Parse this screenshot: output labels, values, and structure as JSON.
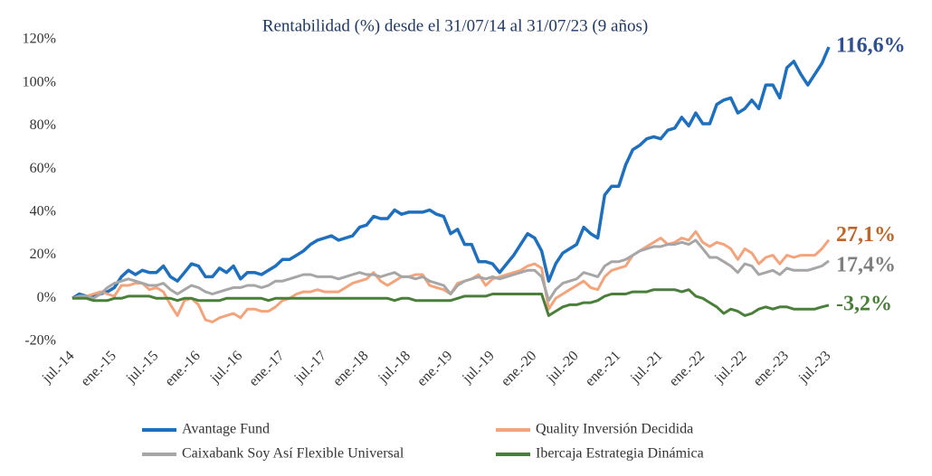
{
  "chart_data": {
    "type": "line",
    "title": "Rentabilidad (%) desde el 31/07/14 al 31/07/23 (9 años)",
    "categories": [
      "jul.-14",
      null,
      null,
      null,
      null,
      null,
      "ene.-15",
      null,
      null,
      null,
      null,
      null,
      "jul.-15",
      null,
      null,
      null,
      null,
      null,
      "ene.-16",
      null,
      null,
      null,
      null,
      null,
      "jul.-16",
      null,
      null,
      null,
      null,
      null,
      "ene.-17",
      null,
      null,
      null,
      null,
      null,
      "jul.-17",
      null,
      null,
      null,
      null,
      null,
      "ene.-18",
      null,
      null,
      null,
      null,
      null,
      "jul.-18",
      null,
      null,
      null,
      null,
      null,
      "ene.-19",
      null,
      null,
      null,
      null,
      null,
      "jul.-19",
      null,
      null,
      null,
      null,
      null,
      "ene.-20",
      null,
      null,
      null,
      null,
      null,
      "jul.-20",
      null,
      null,
      null,
      null,
      null,
      "ene.-21",
      null,
      null,
      null,
      null,
      null,
      "jul.-21",
      null,
      null,
      null,
      null,
      null,
      "ene.-22",
      null,
      null,
      null,
      null,
      null,
      "jul.-22",
      null,
      null,
      null,
      null,
      null,
      "ene.-23",
      null,
      null,
      null,
      null,
      null,
      "jul.-23"
    ],
    "ylim": [
      -20,
      120
    ],
    "yticks": [
      {
        "value": -20,
        "label": "-20%"
      },
      {
        "value": 0,
        "label": "0%"
      },
      {
        "value": 20,
        "label": "20%"
      },
      {
        "value": 40,
        "label": "40%"
      },
      {
        "value": 60,
        "label": "60%"
      },
      {
        "value": 80,
        "label": "80%"
      },
      {
        "value": 100,
        "label": "100%"
      },
      {
        "value": 120,
        "label": "120%"
      }
    ],
    "series": [
      {
        "name": "Avantage Fund",
        "color": "#1f6fbf",
        "label_color": "#2f4f8f",
        "end_label": "116,6%",
        "values": [
          0,
          2,
          1,
          1,
          2,
          3,
          5,
          10,
          13,
          11,
          13,
          12,
          12,
          15,
          10,
          8,
          12,
          16,
          15,
          10,
          10,
          14,
          12,
          15,
          9,
          12,
          12,
          11,
          13,
          15,
          18,
          18,
          20,
          22,
          25,
          27,
          28,
          29,
          27,
          28,
          29,
          33,
          34,
          38,
          37,
          37,
          41,
          39,
          40,
          40,
          40,
          41,
          39,
          38,
          30,
          32,
          25,
          25,
          17,
          17,
          16,
          12,
          16,
          20,
          25,
          30,
          28,
          22,
          8,
          16,
          21,
          23,
          25,
          33,
          30,
          28,
          48,
          52,
          52,
          62,
          69,
          71,
          74,
          75,
          74,
          78,
          79,
          84,
          80,
          86,
          81,
          81,
          90,
          92,
          93,
          86,
          88,
          92,
          88,
          99,
          99,
          93,
          107,
          110,
          104,
          99,
          104,
          109,
          116.6
        ]
      },
      {
        "name": "Quality Inversión Decidida",
        "color": "#f4a47c",
        "label_color": "#c0652a",
        "end_label": "27,1%",
        "values": [
          0,
          1,
          1,
          2,
          3,
          2,
          1,
          6,
          6,
          7,
          7,
          4,
          5,
          3,
          -3,
          -8,
          -1,
          0,
          -3,
          -10,
          -11,
          -9,
          -8,
          -7,
          -9,
          -5,
          -5,
          -6,
          -6,
          -4,
          -1,
          0,
          2,
          3,
          3,
          4,
          3,
          3,
          3,
          5,
          7,
          8,
          9,
          12,
          8,
          6,
          8,
          10,
          10,
          11,
          11,
          6,
          5,
          4,
          2,
          7,
          8,
          9,
          11,
          6,
          9,
          10,
          11,
          12,
          13,
          15,
          16,
          14,
          -5,
          0,
          2,
          4,
          6,
          8,
          5,
          4,
          10,
          13,
          14,
          15,
          20,
          22,
          24,
          26,
          28,
          25,
          26,
          28,
          27,
          31,
          26,
          24,
          26,
          25,
          23,
          18,
          23,
          21,
          16,
          19,
          20,
          16,
          20,
          19,
          20,
          20,
          20,
          23,
          27.1
        ]
      },
      {
        "name": "Caixabank Soy Así Flexible Universal",
        "color": "#a6a6a6",
        "label_color": "#7f7f7f",
        "end_label": "17,4%",
        "values": [
          0,
          1,
          1,
          0,
          2,
          5,
          7,
          8,
          9,
          8,
          7,
          6,
          6,
          7,
          4,
          2,
          4,
          6,
          5,
          3,
          2,
          3,
          4,
          5,
          5,
          6,
          6,
          5,
          6,
          8,
          8,
          9,
          10,
          11,
          11,
          10,
          10,
          10,
          9,
          10,
          11,
          12,
          11,
          11,
          10,
          11,
          12,
          10,
          10,
          9,
          10,
          8,
          7,
          6,
          2,
          6,
          8,
          9,
          10,
          9,
          10,
          9,
          10,
          11,
          12,
          13,
          13,
          10,
          -1,
          4,
          7,
          8,
          9,
          12,
          11,
          10,
          15,
          17,
          17,
          18,
          20,
          22,
          23,
          24,
          24,
          25,
          25,
          26,
          25,
          27,
          23,
          19,
          19,
          17,
          15,
          12,
          16,
          15,
          11,
          12,
          13,
          11,
          14,
          13,
          13,
          13,
          14,
          15,
          17.4
        ]
      },
      {
        "name": "Ibercaja Estrategia Dinámica",
        "color": "#4a7f3a",
        "label_color": "#4a7f3a",
        "end_label": "-3,2%",
        "values": [
          0,
          0,
          0,
          -1,
          -1,
          -1,
          0,
          0,
          1,
          1,
          1,
          1,
          0,
          0,
          0,
          -1,
          0,
          0,
          -1,
          -1,
          -1,
          -1,
          0,
          0,
          0,
          0,
          0,
          0,
          -1,
          0,
          0,
          0,
          0,
          0,
          0,
          0,
          0,
          0,
          0,
          0,
          0,
          0,
          0,
          0,
          0,
          0,
          -1,
          0,
          0,
          -1,
          -1,
          -1,
          -1,
          -1,
          -1,
          0,
          1,
          1,
          1,
          1,
          2,
          2,
          2,
          2,
          2,
          2,
          2,
          2,
          -8,
          -6,
          -4,
          -3,
          -3,
          -2,
          -2,
          -1,
          1,
          2,
          2,
          2,
          3,
          3,
          3,
          4,
          4,
          4,
          4,
          3,
          4,
          1,
          0,
          -2,
          -4,
          -7,
          -5,
          -6,
          -8,
          -7,
          -5,
          -4,
          -5,
          -4,
          -4,
          -5,
          -5,
          -5,
          -5,
          -4,
          -3.2
        ]
      }
    ]
  }
}
